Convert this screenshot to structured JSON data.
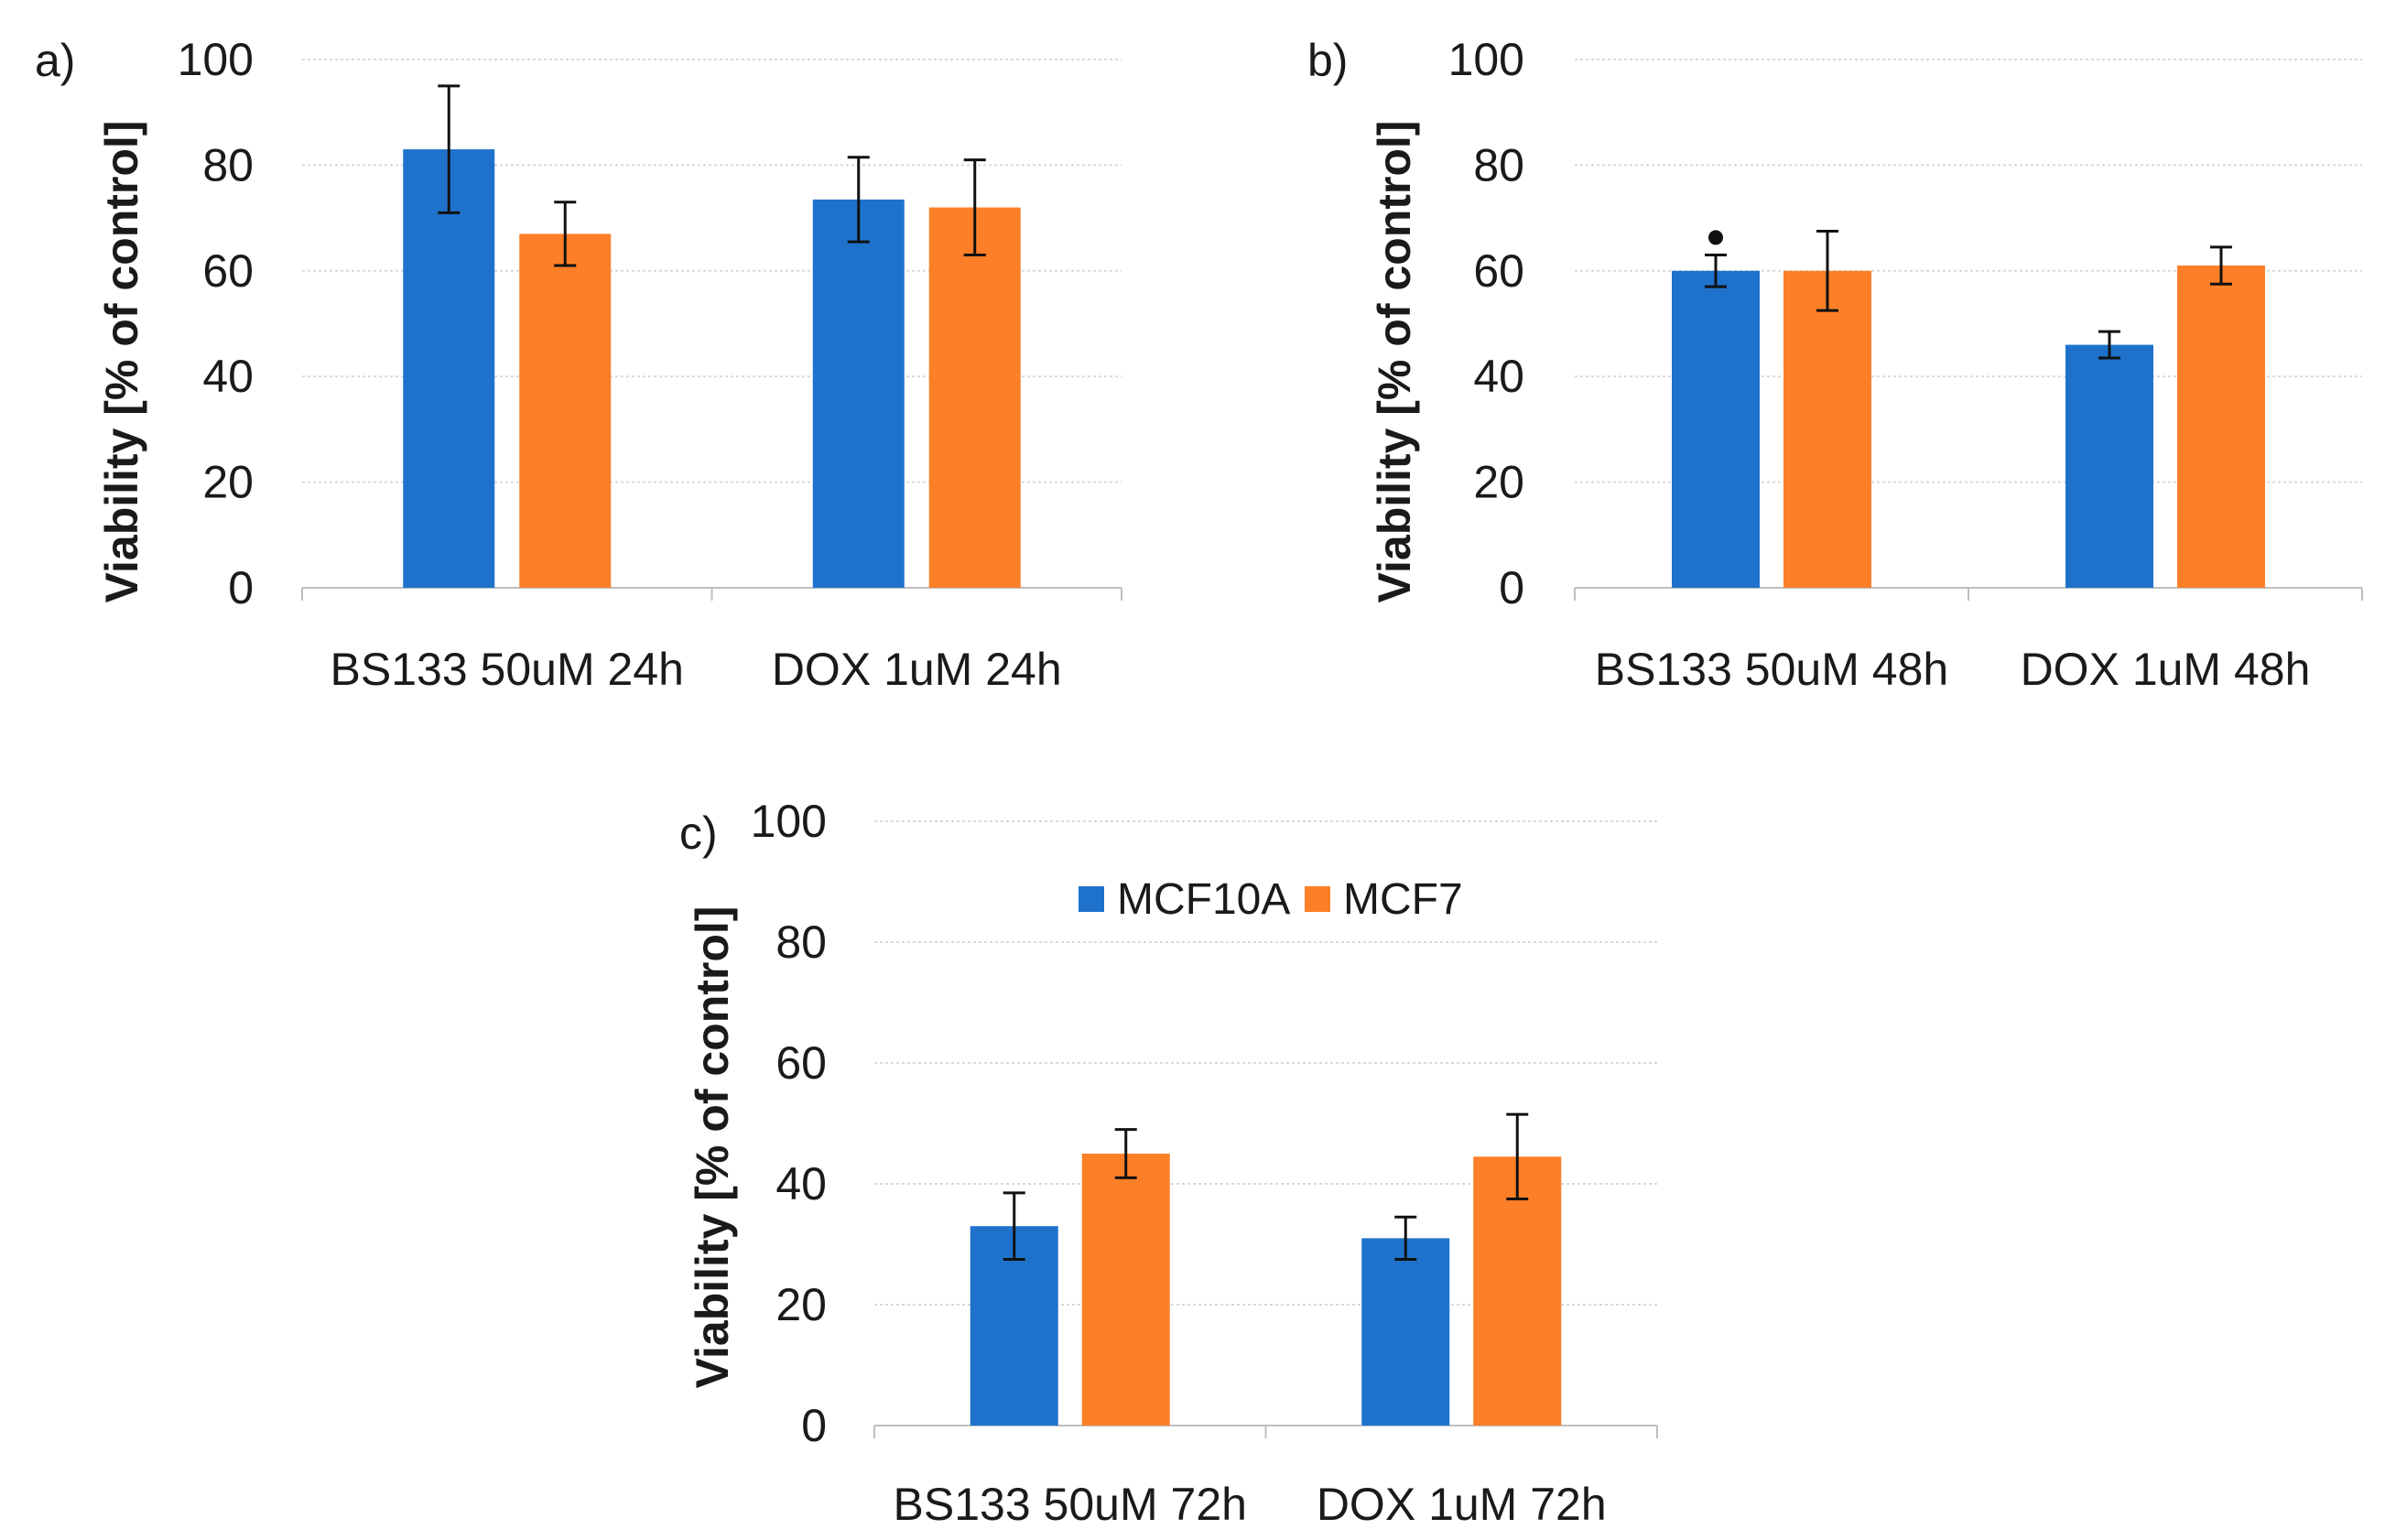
{
  "colors": {
    "MCF10A": "#1f72cc",
    "MCF7": "#fd7f28",
    "grid": "#d9d9d9",
    "axis": "#bfbfbf",
    "error": "#111111"
  },
  "legend": {
    "items": [
      {
        "name": "MCF10A",
        "color": "#1f72cc"
      },
      {
        "name": "MCF7",
        "color": "#fd7f28"
      }
    ]
  },
  "chart_data": [
    {
      "panel": "a)",
      "type": "bar",
      "ylabel": "Viability [% of control]",
      "ylim": [
        0,
        100
      ],
      "yticks": [
        "0",
        "20",
        "40",
        "60",
        "80",
        "100"
      ],
      "categories": [
        "BS133 50uM 24h",
        "DOX 1uM 24h"
      ],
      "series": [
        {
          "name": "MCF10A",
          "values": [
            83,
            73.5
          ],
          "errors": [
            12,
            8
          ]
        },
        {
          "name": "MCF7",
          "values": [
            67,
            72
          ],
          "errors": [
            6,
            9
          ]
        }
      ],
      "annotations": []
    },
    {
      "panel": "b)",
      "type": "bar",
      "ylabel": "Viability [% of control]",
      "ylim": [
        0,
        100
      ],
      "yticks": [
        "0",
        "20",
        "40",
        "60",
        "80",
        "100"
      ],
      "categories": [
        "BS133 50uM 48h",
        "DOX 1uM 48h"
      ],
      "series": [
        {
          "name": "MCF10A",
          "values": [
            60,
            46
          ],
          "errors": [
            3,
            2.5
          ]
        },
        {
          "name": "MCF7",
          "values": [
            60,
            61
          ],
          "errors": [
            7.5,
            3.5
          ]
        }
      ],
      "annotations": [
        {
          "category": 0,
          "series": 0,
          "value": 67,
          "symbol": "dot"
        }
      ]
    },
    {
      "panel": "c)",
      "type": "bar",
      "ylabel": "Viability [% of control]",
      "ylim": [
        0,
        100
      ],
      "yticks": [
        "0",
        "20",
        "40",
        "60",
        "80",
        "100"
      ],
      "categories": [
        "BS133 50uM 72h",
        "DOX 1uM 72h"
      ],
      "series": [
        {
          "name": "MCF10A",
          "values": [
            33,
            31
          ],
          "errors": [
            5.5,
            3.5
          ]
        },
        {
          "name": "MCF7",
          "values": [
            45,
            44.5
          ],
          "errors": [
            4,
            7
          ]
        }
      ],
      "annotations": []
    }
  ]
}
